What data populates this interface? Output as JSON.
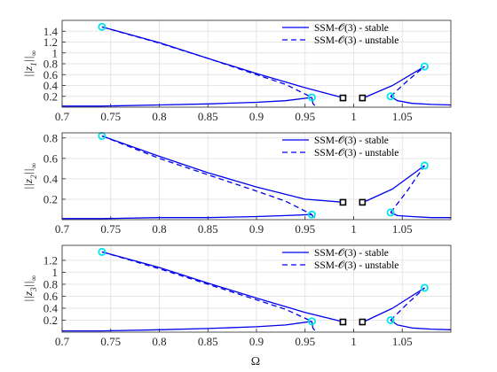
{
  "chart_data": {
    "type": "line",
    "xlabel": "Ω",
    "xlim": [
      0.7,
      1.1
    ],
    "xticks": [
      "0.7",
      "0.75",
      "0.8",
      "0.85",
      "0.9",
      "0.95",
      "1",
      "1.05"
    ],
    "grid": true,
    "colors": {
      "curve": "#0000ee",
      "endpoint_marker": "#00e5ee",
      "bifurcation_marker": "#000000",
      "grid": "#e6e6e6"
    },
    "legend": {
      "placement": "top-right",
      "entries": [
        {
          "label": "SSM-𝒪(3) - stable",
          "style": "solid"
        },
        {
          "label": "SSM-𝒪(3) - unstable",
          "style": "dashed"
        }
      ]
    },
    "panels": [
      {
        "ylabel_main": "||z",
        "ylabel_sub": "1",
        "ylabel_tail": "||",
        "ylabel_norm": "∞",
        "ylim": [
          0,
          1.6
        ],
        "yticks": [
          "0.2",
          "0.4",
          "0.6",
          "0.8",
          "1",
          "1.2",
          "1.4"
        ],
        "series": [
          {
            "style": "solid",
            "x": [
              0.741,
              0.8,
              0.85,
              0.9,
              0.95,
              0.99
            ],
            "y": [
              1.48,
              1.19,
              0.9,
              0.62,
              0.36,
              0.17
            ]
          },
          {
            "style": "dashed",
            "x": [
              0.741,
              0.8,
              0.85,
              0.9,
              0.93,
              0.957
            ],
            "y": [
              1.48,
              1.18,
              0.9,
              0.6,
              0.42,
              0.18
            ]
          },
          {
            "style": "solid",
            "x": [
              0.957,
              0.958,
              0.96
            ],
            "y": [
              0.18,
              0.07,
              0.03
            ]
          },
          {
            "style": "solid",
            "x": [
              0.7,
              0.741,
              0.8,
              0.85,
              0.9,
              0.93,
              0.957
            ],
            "y": [
              0.02,
              0.02,
              0.04,
              0.06,
              0.09,
              0.12,
              0.18
            ]
          },
          {
            "style": "solid",
            "x": [
              1.01,
              1.04,
              1.073
            ],
            "y": [
              0.17,
              0.4,
              0.75
            ]
          },
          {
            "style": "dashed",
            "x": [
              1.038,
              1.055,
              1.073
            ],
            "y": [
              0.2,
              0.48,
              0.75
            ]
          },
          {
            "style": "solid",
            "x": [
              1.038,
              1.045,
              1.06,
              1.08,
              1.1
            ],
            "y": [
              0.2,
              0.12,
              0.07,
              0.05,
              0.04
            ]
          }
        ],
        "endpoints": {
          "x": [
            0.741,
            0.957,
            1.038,
            1.073
          ],
          "y": [
            1.48,
            0.18,
            0.2,
            0.75
          ]
        },
        "bifurcations": {
          "x": [
            0.989,
            1.009
          ],
          "y": [
            0.17,
            0.17
          ]
        }
      },
      {
        "ylabel_main": "||z",
        "ylabel_sub": "2",
        "ylabel_tail": "||",
        "ylabel_norm": "∞",
        "ylim": [
          0,
          0.85
        ],
        "yticks": [
          "0.2",
          "0.4",
          "0.6",
          "0.8"
        ],
        "series": [
          {
            "style": "solid",
            "x": [
              0.741,
              0.8,
              0.85,
              0.9,
              0.95,
              0.99
            ],
            "y": [
              0.82,
              0.62,
              0.46,
              0.32,
              0.2,
              0.17
            ]
          },
          {
            "style": "dashed",
            "x": [
              0.741,
              0.8,
              0.85,
              0.9,
              0.93,
              0.957
            ],
            "y": [
              0.82,
              0.6,
              0.44,
              0.28,
              0.18,
              0.05
            ]
          },
          {
            "style": "solid",
            "x": [
              0.957,
              0.958,
              0.96
            ],
            "y": [
              0.05,
              0.03,
              0.02
            ]
          },
          {
            "style": "solid",
            "x": [
              0.7,
              0.741,
              0.8,
              0.85,
              0.9,
              0.93,
              0.957
            ],
            "y": [
              0.01,
              0.01,
              0.02,
              0.02,
              0.03,
              0.04,
              0.05
            ]
          },
          {
            "style": "solid",
            "x": [
              1.01,
              1.04,
              1.073
            ],
            "y": [
              0.17,
              0.3,
              0.53
            ]
          },
          {
            "style": "dashed",
            "x": [
              1.038,
              1.055,
              1.073
            ],
            "y": [
              0.07,
              0.28,
              0.53
            ]
          },
          {
            "style": "solid",
            "x": [
              1.038,
              1.045,
              1.06,
              1.08,
              1.1
            ],
            "y": [
              0.07,
              0.04,
              0.03,
              0.02,
              0.02
            ]
          }
        ],
        "endpoints": {
          "x": [
            0.741,
            0.957,
            1.038,
            1.073
          ],
          "y": [
            0.82,
            0.05,
            0.07,
            0.53
          ]
        },
        "bifurcations": {
          "x": [
            0.989,
            1.009
          ],
          "y": [
            0.17,
            0.17
          ]
        }
      },
      {
        "ylabel_main": "||z",
        "ylabel_sub": "3",
        "ylabel_tail": "||",
        "ylabel_norm": "∞",
        "ylim": [
          0,
          1.45
        ],
        "yticks": [
          "0.2",
          "0.4",
          "0.6",
          "0.8",
          "1",
          "1.2"
        ],
        "series": [
          {
            "style": "solid",
            "x": [
              0.741,
              0.8,
              0.85,
              0.9,
              0.95,
              0.99
            ],
            "y": [
              1.34,
              1.08,
              0.82,
              0.57,
              0.33,
              0.17
            ]
          },
          {
            "style": "dashed",
            "x": [
              0.741,
              0.8,
              0.85,
              0.9,
              0.93,
              0.957
            ],
            "y": [
              1.34,
              1.06,
              0.8,
              0.54,
              0.38,
              0.18
            ]
          },
          {
            "style": "solid",
            "x": [
              0.957,
              0.958,
              0.96
            ],
            "y": [
              0.18,
              0.07,
              0.03
            ]
          },
          {
            "style": "solid",
            "x": [
              0.7,
              0.741,
              0.8,
              0.85,
              0.9,
              0.93,
              0.957
            ],
            "y": [
              0.02,
              0.02,
              0.04,
              0.06,
              0.09,
              0.12,
              0.18
            ]
          },
          {
            "style": "solid",
            "x": [
              1.01,
              1.04,
              1.073
            ],
            "y": [
              0.17,
              0.4,
              0.74
            ]
          },
          {
            "style": "dashed",
            "x": [
              1.038,
              1.055,
              1.073
            ],
            "y": [
              0.2,
              0.47,
              0.74
            ]
          },
          {
            "style": "solid",
            "x": [
              1.038,
              1.045,
              1.06,
              1.08,
              1.1
            ],
            "y": [
              0.2,
              0.12,
              0.07,
              0.05,
              0.04
            ]
          }
        ],
        "endpoints": {
          "x": [
            0.741,
            0.957,
            1.038,
            1.073
          ],
          "y": [
            1.34,
            0.18,
            0.2,
            0.74
          ]
        },
        "bifurcations": {
          "x": [
            0.989,
            1.009
          ],
          "y": [
            0.17,
            0.17
          ]
        }
      }
    ]
  }
}
